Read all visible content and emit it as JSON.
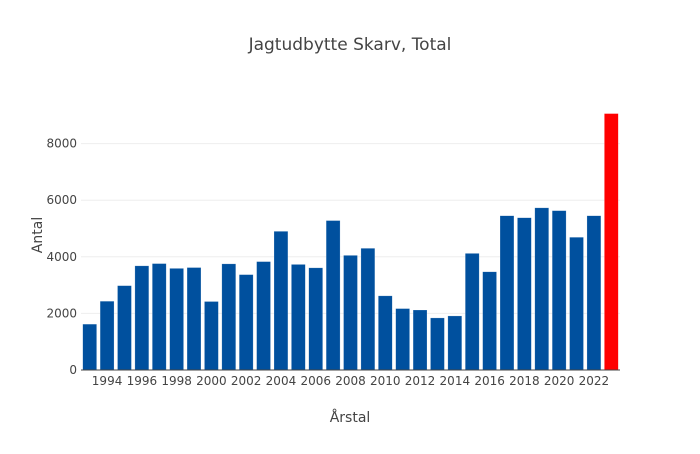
{
  "chart_data": {
    "type": "bar",
    "title": "Jagtudbytte Skarv, Total",
    "xlabel": "Årstal",
    "ylabel": "Antal",
    "ylim": [
      0,
      9540
    ],
    "yticks": [
      0,
      2000,
      4000,
      6000,
      8000
    ],
    "xticks": [
      1994,
      1996,
      1998,
      2000,
      2002,
      2004,
      2006,
      2008,
      2010,
      2012,
      2014,
      2016,
      2018,
      2020,
      2022
    ],
    "grid": true,
    "categories": [
      1993,
      1994,
      1995,
      1996,
      1997,
      1998,
      1999,
      2000,
      2001,
      2002,
      2003,
      2004,
      2005,
      2006,
      2007,
      2008,
      2009,
      2010,
      2011,
      2012,
      2013,
      2014,
      2015,
      2016,
      2017,
      2018,
      2019,
      2020,
      2021,
      2022,
      2023
    ],
    "values": [
      1620,
      2430,
      2980,
      3680,
      3760,
      3590,
      3620,
      2420,
      3750,
      3370,
      3830,
      4900,
      3730,
      3610,
      5280,
      4050,
      4300,
      2620,
      2170,
      2120,
      1840,
      1910,
      4120,
      3470,
      5450,
      5380,
      5730,
      5630,
      4690,
      5450,
      9060
    ],
    "colors": {
      "default": "#00509e",
      "highlight": "#ff0000"
    },
    "highlight_index": 30
  }
}
